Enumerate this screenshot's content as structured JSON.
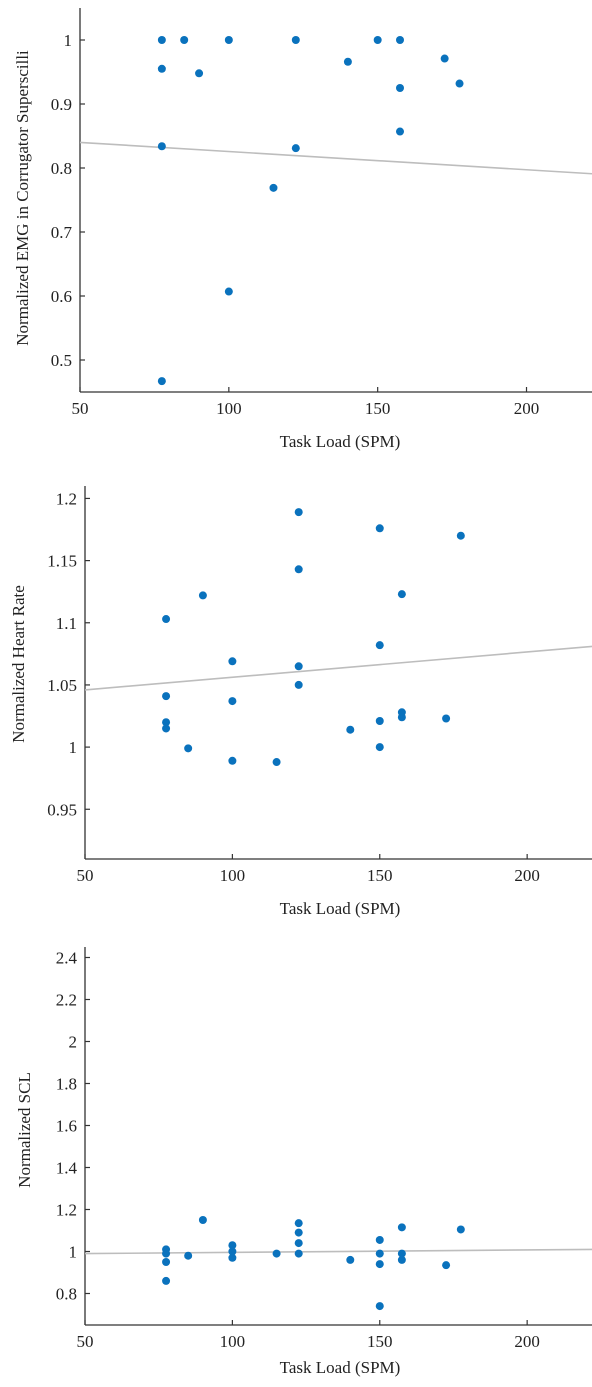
{
  "colors": {
    "points": "#0a72bd",
    "fit_line": "#bdbdbd",
    "axis": "#333333"
  },
  "chart_data": [
    {
      "type": "scatter",
      "title": "",
      "xlabel": "Task Load (SPM)",
      "ylabel": "Normalized EMG in Corrugator Superscilli",
      "xlim": [
        50,
        222
      ],
      "ylim": [
        0.45,
        1.05
      ],
      "xticks": [
        50,
        100,
        150,
        200
      ],
      "yticks": [
        0.5,
        0.6,
        0.7,
        0.8,
        0.9,
        1
      ],
      "xtick_labels": [
        "50",
        "100",
        "150",
        "200"
      ],
      "ytick_labels": [
        "0.5",
        "0.6",
        "0.7",
        "0.8",
        "0.9",
        "1"
      ],
      "points": [
        [
          77.5,
          1.0
        ],
        [
          77.5,
          0.955
        ],
        [
          77.5,
          0.834
        ],
        [
          77.5,
          0.467
        ],
        [
          85,
          1.0
        ],
        [
          90,
          0.948
        ],
        [
          100,
          1.0
        ],
        [
          100,
          0.607
        ],
        [
          115,
          0.769
        ],
        [
          122.5,
          1.0
        ],
        [
          122.5,
          0.831
        ],
        [
          140,
          0.966
        ],
        [
          150,
          1.0
        ],
        [
          157.5,
          1.0
        ],
        [
          157.5,
          0.925
        ],
        [
          157.5,
          0.857
        ],
        [
          172.5,
          0.971
        ],
        [
          177.5,
          0.932
        ]
      ],
      "fit_line": {
        "x": [
          50,
          222
        ],
        "y": [
          0.84,
          0.791
        ]
      }
    },
    {
      "type": "scatter",
      "title": "",
      "xlabel": "Task Load (SPM)",
      "ylabel": "Normalized Heart Rate",
      "xlim": [
        50,
        222
      ],
      "ylim": [
        0.91,
        1.21
      ],
      "xticks": [
        50,
        100,
        150,
        200
      ],
      "yticks": [
        0.95,
        1,
        1.05,
        1.1,
        1.15,
        1.2
      ],
      "xtick_labels": [
        "50",
        "100",
        "150",
        "200"
      ],
      "ytick_labels": [
        "0.95",
        "1",
        "1.05",
        "1.1",
        "1.15",
        "1.2"
      ],
      "points": [
        [
          77.5,
          1.103
        ],
        [
          77.5,
          1.041
        ],
        [
          77.5,
          1.02
        ],
        [
          77.5,
          1.015
        ],
        [
          85,
          0.999
        ],
        [
          90,
          1.122
        ],
        [
          100,
          1.069
        ],
        [
          100,
          1.037
        ],
        [
          100,
          0.989
        ],
        [
          115,
          0.988
        ],
        [
          122.5,
          1.189
        ],
        [
          122.5,
          1.143
        ],
        [
          122.5,
          1.065
        ],
        [
          122.5,
          1.05
        ],
        [
          140,
          1.014
        ],
        [
          150,
          1.176
        ],
        [
          150,
          1.082
        ],
        [
          150,
          1.021
        ],
        [
          150,
          1.0
        ],
        [
          157.5,
          1.123
        ],
        [
          157.5,
          1.028
        ],
        [
          157.5,
          1.024
        ],
        [
          172.5,
          1.023
        ],
        [
          177.5,
          1.17
        ]
      ],
      "fit_line": {
        "x": [
          50,
          222
        ],
        "y": [
          1.046,
          1.081
        ]
      }
    },
    {
      "type": "scatter",
      "title": "",
      "xlabel": "Task Load (SPM)",
      "ylabel": "Normalized SCL",
      "xlim": [
        50,
        222
      ],
      "ylim": [
        0.65,
        2.45
      ],
      "xticks": [
        50,
        100,
        150,
        200
      ],
      "yticks": [
        0.8,
        1,
        1.2,
        1.4,
        1.6,
        1.8,
        2,
        2.2,
        2.4
      ],
      "xtick_labels": [
        "50",
        "100",
        "150",
        "200"
      ],
      "ytick_labels": [
        "0.8",
        "1",
        "1.2",
        "1.4",
        "1.6",
        "1.8",
        "2",
        "2.2",
        "2.4"
      ],
      "points": [
        [
          77.5,
          1.01
        ],
        [
          77.5,
          0.99
        ],
        [
          77.5,
          0.95
        ],
        [
          77.5,
          0.86
        ],
        [
          85,
          0.98
        ],
        [
          90,
          1.15
        ],
        [
          100,
          1.03
        ],
        [
          100,
          1.0
        ],
        [
          100,
          0.97
        ],
        [
          115,
          0.99
        ],
        [
          122.5,
          1.135
        ],
        [
          122.5,
          1.09
        ],
        [
          122.5,
          1.04
        ],
        [
          122.5,
          0.99
        ],
        [
          140,
          0.96
        ],
        [
          150,
          1.055
        ],
        [
          150,
          0.99
        ],
        [
          150,
          0.94
        ],
        [
          150,
          0.74
        ],
        [
          157.5,
          1.115
        ],
        [
          157.5,
          0.99
        ],
        [
          157.5,
          0.96
        ],
        [
          172.5,
          0.935
        ],
        [
          177.5,
          1.105
        ]
      ],
      "fit_line": {
        "x": [
          50,
          222
        ],
        "y": [
          0.99,
          1.01
        ]
      }
    }
  ]
}
